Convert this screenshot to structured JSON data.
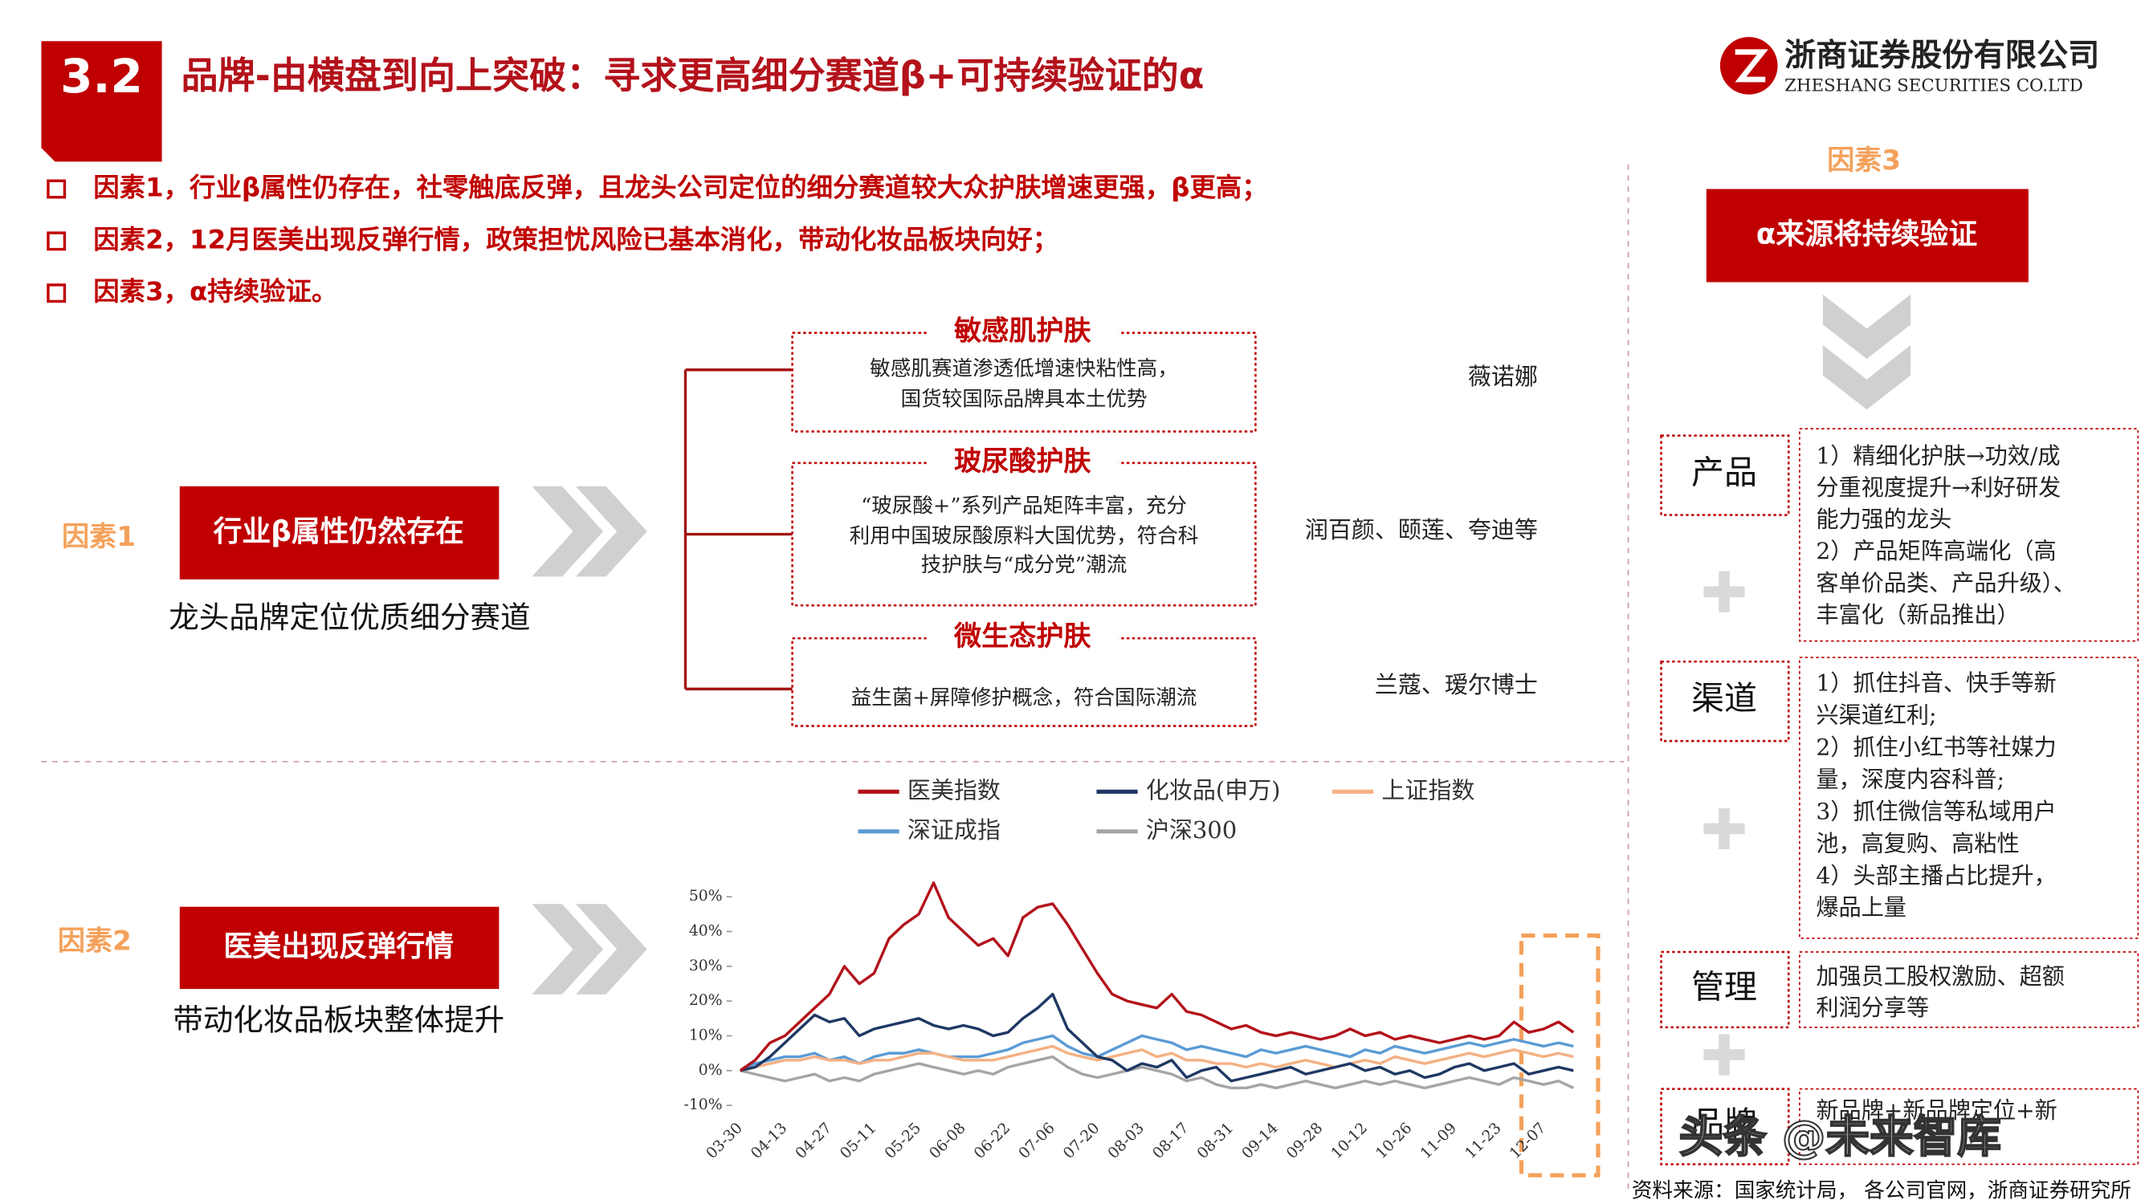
{
  "header": {
    "number": "3.2",
    "title": "品牌-由横盘到向上突破：寻求更高细分赛道β+可持续验证的α",
    "company": "浙商证券股份有限公司",
    "company_en": "ZHESHANG SECURITIES CO.LTD"
  },
  "bullets": [
    "因素1，行业β属性仍存在，社零触底反弹，且龙头公司定位的细分赛道较大众护肤增速更强，β更高；",
    "因素2，12月医美出现反弹行情，政策担忧风险已基本消化，带动化妆品板块向好；",
    "因素3，α持续验证。"
  ],
  "factor1": {
    "label": "因素1",
    "box": "行业β属性仍然存在",
    "caption": "龙头品牌定位优质细分赛道"
  },
  "segments": [
    {
      "title": "敏感肌护肤",
      "lines": [
        "敏感肌赛道渗透低增速快粘性高，",
        "国货较国际品牌具本土优势"
      ],
      "brands": "薇诺娜"
    },
    {
      "title": "玻尿酸护肤",
      "lines": [
        "“玻尿酸+”系列产品矩阵丰富，充分",
        "利用中国玻尿酸原料大国优势，符合科",
        "技护肤与“成分党”潮流"
      ],
      "brands": "润百颜、颐莲、夸迪等"
    },
    {
      "title": "微生态护肤",
      "lines": [
        "益生菌+屏障修护概念，符合国际潮流"
      ],
      "brands": "兰蔻、瑷尔博士"
    }
  ],
  "factor2": {
    "label": "因素2",
    "box": "医美出现反弹行情",
    "caption": "带动化妆品板块整体提升"
  },
  "factor3": {
    "label": "因素3",
    "box": "α来源将持续验证",
    "items": [
      {
        "name": "产品",
        "lines": [
          "1）精细化护肤→功效/成",
          "分重视度提升→利好研发",
          "能力强的龙头",
          "2）产品矩阵高端化（高",
          "客单价品类、产品升级）、",
          "丰富化（新品推出）"
        ]
      },
      {
        "name": "渠道",
        "lines": [
          "1）抓住抖音、快手等新",
          "兴渠道红利;",
          "2）抓住小红书等社媒力",
          "量，深度内容科普;",
          "3）抓住微信等私域用户",
          "池，高复购、高粘性",
          "4）头部主播占比提升，",
          "爆品上量"
        ]
      },
      {
        "name": "管理",
        "lines": [
          "加强员工股权激励、超额",
          "利润分享等"
        ]
      },
      {
        "name": "品牌",
        "lines": [
          "新品牌+新品牌定位+新"
        ]
      }
    ]
  },
  "watermark": "头条 @未来智库",
  "source": "资料来源：国家统计局， 各公司官网，浙商证券研究所",
  "chart_data": {
    "type": "line",
    "categories": [
      "03-30",
      null,
      null,
      "04-13",
      null,
      null,
      "04-27",
      null,
      null,
      "05-11",
      null,
      null,
      "05-25",
      null,
      null,
      "06-08",
      null,
      null,
      "06-22",
      null,
      null,
      "07-06",
      null,
      null,
      "07-20",
      null,
      null,
      "08-03",
      null,
      null,
      "08-17",
      null,
      null,
      "08-31",
      null,
      null,
      "09-14",
      null,
      null,
      "09-28",
      null,
      null,
      "10-12",
      null,
      null,
      "10-26",
      null,
      null,
      "11-09",
      null,
      null,
      "11-23",
      null,
      null,
      "12-07",
      null,
      null
    ],
    "series": [
      {
        "name": "医美指数",
        "color": "#b3121b",
        "values": [
          0,
          3,
          8,
          10,
          14,
          18,
          22,
          30,
          25,
          28,
          38,
          42,
          45,
          54,
          44,
          40,
          36,
          38,
          33,
          44,
          47,
          48,
          42,
          35,
          28,
          22,
          20,
          19,
          18,
          22,
          17,
          16,
          14,
          12,
          13,
          11,
          10,
          11,
          10,
          9,
          10,
          12,
          10,
          11,
          9,
          10,
          9,
          8,
          9,
          10,
          9,
          10,
          14,
          11,
          12,
          14,
          11
        ]
      },
      {
        "name": "化妆品(申万)",
        "color": "#1f3864",
        "values": [
          0,
          1,
          4,
          8,
          12,
          16,
          14,
          15,
          10,
          12,
          13,
          14,
          15,
          13,
          12,
          13,
          12,
          10,
          11,
          15,
          18,
          22,
          12,
          8,
          4,
          3,
          0,
          2,
          1,
          3,
          -2,
          0,
          1,
          -3,
          -2,
          -1,
          0,
          1,
          -1,
          0,
          1,
          2,
          0,
          1,
          -1,
          0,
          -2,
          -1,
          1,
          2,
          0,
          1,
          2,
          -1,
          0,
          1,
          0
        ]
      },
      {
        "name": "上证指数",
        "color": "#f4b183",
        "values": [
          0,
          1,
          2,
          3,
          3,
          4,
          3,
          3,
          2,
          3,
          3,
          4,
          5,
          5,
          4,
          3,
          3,
          3,
          4,
          5,
          6,
          7,
          5,
          4,
          3,
          4,
          5,
          6,
          4,
          5,
          3,
          3,
          2,
          2,
          1,
          2,
          1,
          2,
          3,
          2,
          1,
          2,
          3,
          2,
          4,
          3,
          2,
          3,
          4,
          5,
          4,
          5,
          6,
          5,
          4,
          5,
          4
        ]
      },
      {
        "name": "深证成指",
        "color": "#5b9bd5",
        "values": [
          0,
          2,
          3,
          4,
          4,
          5,
          3,
          4,
          2,
          4,
          5,
          5,
          6,
          5,
          4,
          4,
          4,
          5,
          6,
          8,
          9,
          10,
          7,
          5,
          4,
          6,
          8,
          10,
          9,
          8,
          6,
          7,
          6,
          5,
          4,
          6,
          5,
          6,
          7,
          6,
          5,
          4,
          6,
          5,
          7,
          6,
          5,
          6,
          7,
          8,
          7,
          8,
          9,
          8,
          7,
          8,
          7
        ]
      },
      {
        "name": "沪深300",
        "color": "#a5a5a5",
        "values": [
          0,
          -1,
          -2,
          -3,
          -2,
          -1,
          -3,
          -2,
          -3,
          -1,
          0,
          1,
          2,
          1,
          0,
          -1,
          0,
          -1,
          1,
          2,
          3,
          4,
          1,
          -1,
          -2,
          -1,
          0,
          1,
          0,
          -1,
          -3,
          -2,
          -4,
          -5,
          -5,
          -4,
          -5,
          -4,
          -3,
          -4,
          -5,
          -4,
          -3,
          -4,
          -3,
          -4,
          -5,
          -4,
          -3,
          -2,
          -3,
          -4,
          -2,
          -3,
          -4,
          -3,
          -5
        ]
      }
    ],
    "ylim": [
      -10,
      55
    ],
    "yticks": [
      {
        "value": -10,
        "label": "-10%"
      },
      {
        "value": 0,
        "label": "0%"
      },
      {
        "value": 10,
        "label": "10%"
      },
      {
        "value": 20,
        "label": "20%"
      },
      {
        "value": 30,
        "label": "30%"
      },
      {
        "value": 40,
        "label": "40%"
      },
      {
        "value": 50,
        "label": "50%"
      }
    ],
    "grid": false
  }
}
